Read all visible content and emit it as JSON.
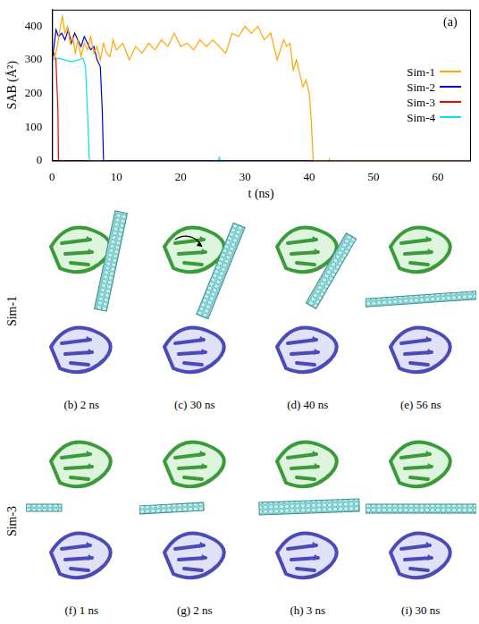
{
  "chart_data": {
    "type": "line",
    "annotation": "(a)",
    "x_label": "t (ns)",
    "y_label": "SAB (Å²)",
    "xlim": [
      0,
      65
    ],
    "xticks": [
      0,
      10,
      20,
      30,
      40,
      50,
      60
    ],
    "ylim": [
      0,
      450
    ],
    "yticks": [
      0,
      100,
      200,
      300,
      400
    ],
    "grid": false,
    "legend": "lower right",
    "series": [
      {
        "name": "Sim-1",
        "color": "#ffa500",
        "x": [
          0.3,
          0.8,
          1.2,
          1.6,
          2.0,
          2.4,
          2.8,
          3.2,
          3.6,
          4,
          4.5,
          5,
          5.5,
          6,
          6.5,
          7,
          7.5,
          8,
          8.5,
          9,
          9.5,
          10,
          11,
          12,
          13,
          14,
          15,
          16,
          17,
          18,
          19,
          20,
          21,
          22,
          23,
          24,
          25,
          26,
          27,
          28,
          29,
          30,
          31,
          32,
          33,
          34,
          35,
          35.5,
          36,
          36.5,
          37,
          37.5,
          38,
          38.5,
          39,
          39.5,
          40,
          40.3,
          40.6,
          43,
          43.1,
          43.2,
          65
        ],
        "values": [
          300,
          340,
          390,
          430,
          380,
          400,
          350,
          370,
          320,
          360,
          310,
          350,
          330,
          370,
          320,
          340,
          300,
          350,
          320,
          310,
          360,
          330,
          350,
          300,
          340,
          320,
          350,
          330,
          360,
          340,
          380,
          340,
          350,
          330,
          360,
          340,
          360,
          340,
          320,
          380,
          370,
          400,
          380,
          400,
          360,
          380,
          300,
          330,
          360,
          340,
          350,
          270,
          300,
          260,
          220,
          240,
          200,
          120,
          0,
          0,
          5,
          0,
          0
        ]
      },
      {
        "name": "Sim-2",
        "color": "#0000cd",
        "x": [
          0,
          0.3,
          0.6,
          1,
          1.5,
          2,
          2.5,
          3,
          3.5,
          4,
          4.5,
          5,
          5.5,
          6,
          6.5,
          7,
          7.5,
          7.8,
          8,
          65
        ],
        "values": [
          300,
          340,
          390,
          370,
          380,
          360,
          390,
          350,
          380,
          360,
          340,
          370,
          350,
          330,
          340,
          300,
          280,
          150,
          0,
          0
        ]
      },
      {
        "name": "Sim-3",
        "color": "#ff0000",
        "x": [
          0,
          0.3,
          0.6,
          0.9,
          1.0,
          65
        ],
        "values": [
          310,
          320,
          300,
          150,
          0,
          0
        ]
      },
      {
        "name": "Sim-4",
        "color": "#00e5ee",
        "x": [
          0,
          1,
          2,
          3,
          4,
          4.8,
          5.2,
          5.6,
          5.8,
          25.8,
          26,
          26.2,
          65
        ],
        "values": [
          300,
          305,
          300,
          295,
          300,
          305,
          280,
          100,
          0,
          0,
          10,
          0,
          0
        ]
      }
    ]
  },
  "figure_rows": [
    {
      "label": "Sim-1",
      "panels": [
        "(b) 2 ns",
        "(c) 30 ns",
        "(d) 40 ns",
        "(e) 56 ns"
      ]
    },
    {
      "label": "Sim-3",
      "panels": [
        "(f) 1 ns",
        "(g) 2 ns",
        "(h) 3 ns",
        "(i) 30 ns"
      ]
    }
  ]
}
